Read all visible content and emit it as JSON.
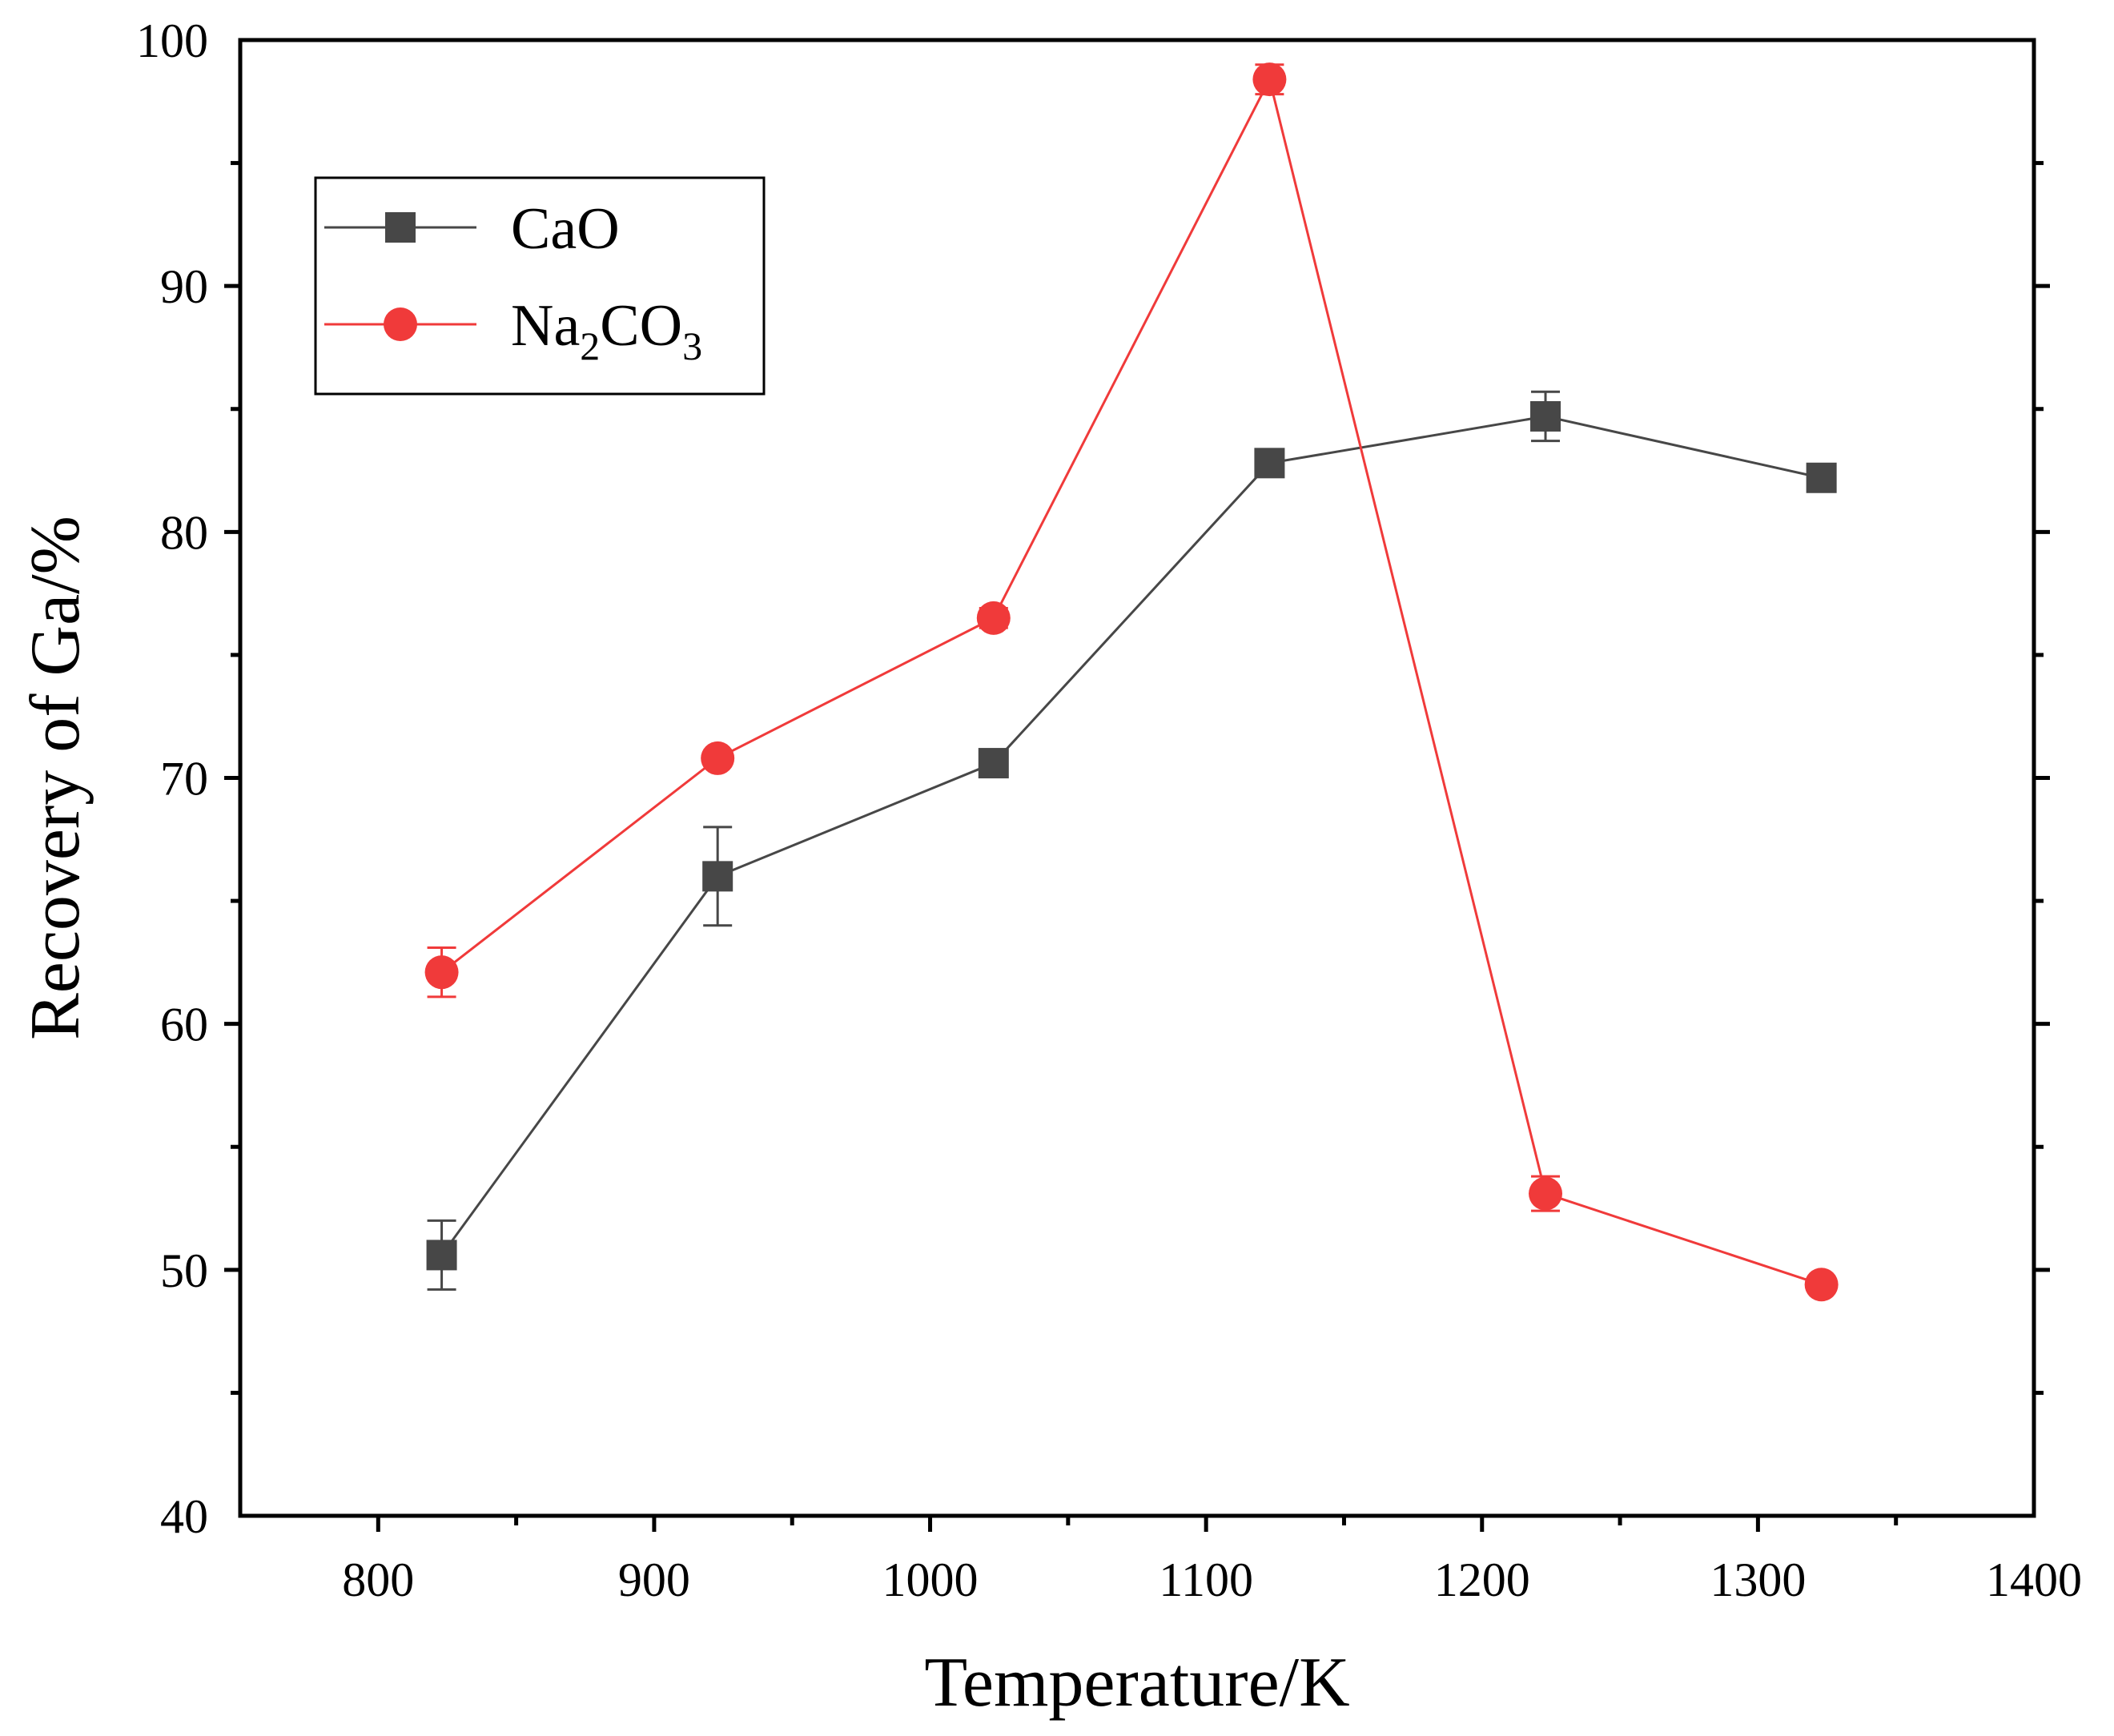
{
  "chart_data": {
    "type": "line",
    "title": "",
    "xlabel": "Temperature/K",
    "ylabel": "Recovery of Ga/%",
    "xlim": [
      750,
      1400
    ],
    "ylim": [
      40,
      100
    ],
    "x_ticks": [
      800,
      900,
      1000,
      1100,
      1200,
      1300,
      1400
    ],
    "x_minor_ticks": [
      850,
      950,
      1050,
      1150,
      1250,
      1350
    ],
    "y_ticks": [
      40,
      50,
      60,
      70,
      80,
      90,
      100
    ],
    "y_minor_ticks": [
      45,
      55,
      65,
      75,
      85,
      95
    ],
    "grid": false,
    "legend_position": "top-left",
    "series": [
      {
        "name": "CaO",
        "legend_main": "CaO",
        "legend_subs": [],
        "marker": "square",
        "color": "#474747",
        "x": [
          823,
          923,
          1023,
          1123,
          1223,
          1323
        ],
        "values": [
          50.6,
          66.0,
          70.6,
          82.8,
          84.7,
          82.2
        ],
        "errors": [
          1.4,
          2.0,
          0.3,
          0.3,
          1.0,
          0.3
        ]
      },
      {
        "name": "Na2CO3",
        "legend_main": "Na",
        "legend_subs": [
          "2",
          "CO",
          "3"
        ],
        "marker": "circle",
        "color": "#f03a3a",
        "x": [
          823,
          923,
          1023,
          1123,
          1223,
          1323
        ],
        "values": [
          62.1,
          70.8,
          76.5,
          98.4,
          53.1,
          49.4
        ],
        "errors": [
          1.0,
          0.3,
          0.4,
          0.6,
          0.7,
          0.3
        ]
      }
    ]
  }
}
